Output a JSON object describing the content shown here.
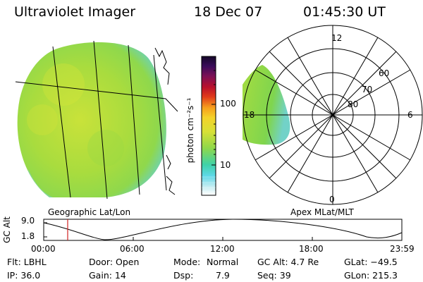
{
  "header": {
    "title": "Ultraviolet Imager",
    "date": "18 Dec 07",
    "time": "01:45:30 UT"
  },
  "colorbar": {
    "unit_label": "photon cm⁻²s⁻¹",
    "ticks": [
      "100",
      "10"
    ]
  },
  "geo_panel": {
    "caption": "Geographic Lat/Lon"
  },
  "polar_panel": {
    "caption": "Apex MLat/MLT",
    "mlt_labels": {
      "top": "12",
      "left": "18",
      "right": "6",
      "bottom": "0"
    },
    "lat_labels": [
      "60",
      "70",
      "80"
    ]
  },
  "altitude_plot": {
    "ylabel": "GC Alt",
    "yticks": [
      "9.0",
      "1.8"
    ],
    "xticks": [
      "00:00",
      "06:00",
      "12:00",
      "18:00",
      "23:59"
    ],
    "marker_time_utc": "01:45:30"
  },
  "footer": {
    "row1": {
      "flt": "Flt: LBHL",
      "door": "Door: Open",
      "mode_label": "Mode:",
      "mode_value": "Normal",
      "gc_alt": "GC Alt: 4.7 Re",
      "glat": "GLat: −49.5"
    },
    "row2": {
      "ip": "IP: 36.0",
      "gain": "Gain: 14",
      "dsp_label": "Dsp:",
      "dsp_value": "7.9",
      "seq": "Seq: 39",
      "glon": "GLon: 215.3"
    }
  },
  "colors": {
    "image_base": "#a8dc3c",
    "image_edge": "#7fd6ec",
    "marker": "#d02020"
  }
}
